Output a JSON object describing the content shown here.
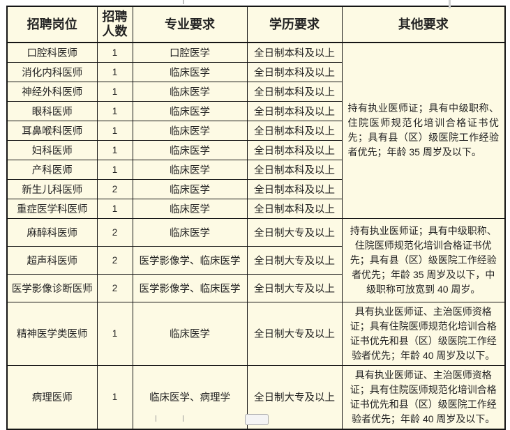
{
  "table": {
    "headers": [
      "招聘岗位",
      "招聘人数",
      "专业要求",
      "学历要求",
      "其他要求"
    ],
    "rows": [
      {
        "position": "口腔科医师",
        "count": "1",
        "major": "口腔医学",
        "education": "全日制本科及以上"
      },
      {
        "position": "消化内科医师",
        "count": "1",
        "major": "临床医学",
        "education": "全日制本科及以上"
      },
      {
        "position": "神经外科医师",
        "count": "1",
        "major": "临床医学",
        "education": "全日制本科及以上"
      },
      {
        "position": "眼科医师",
        "count": "1",
        "major": "临床医学",
        "education": "全日制本科及以上"
      },
      {
        "position": "耳鼻喉科医师",
        "count": "1",
        "major": "临床医学",
        "education": "全日制本科及以上"
      },
      {
        "position": "妇科医师",
        "count": "1",
        "major": "临床医学",
        "education": "全日制本科及以上"
      },
      {
        "position": "产科医师",
        "count": "1",
        "major": "临床医学",
        "education": "全日制本科及以上"
      },
      {
        "position": "新生儿科医师",
        "count": "2",
        "major": "临床医学",
        "education": "全日制本科及以上"
      },
      {
        "position": "重症医学科医师",
        "count": "1",
        "major": "临床医学",
        "education": "全日制本科及以上"
      },
      {
        "position": "麻醉科医师",
        "count": "2",
        "major": "临床医学",
        "education": "全日制大专及以上"
      },
      {
        "position": "超声科医师",
        "count": "2",
        "major": "医学影像学、临床医学",
        "education": "全日制大专及以上"
      },
      {
        "position": "医学影像诊断医师",
        "count": "2",
        "major": "医学影像学、临床医学",
        "education": "全日制大专及以上"
      },
      {
        "position": "精神医学类医师",
        "count": "1",
        "major": "临床医学",
        "education": "全日制大专及以上"
      },
      {
        "position": "病理医师",
        "count": "1",
        "major": "临床医学、病理学",
        "education": "全日制大专及以上"
      }
    ],
    "other_requirements": [
      {
        "row_start": 0,
        "row_span": 9,
        "align": "justify",
        "text": "持有执业医师证；具有中级职称、住院医师规范化培训合格证书优先；具有县（区）级医院工作经验者优先；年龄 35 周岁及以下。"
      },
      {
        "row_start": 9,
        "row_span": 3,
        "align": "center",
        "text": "持有执业医师证；具有中级职称、住院医师规范化培训合格证书优先；具有县（区）级医院工作经验者优先；年龄 35 周岁及以下，中级职称可放宽到 40 周岁。"
      },
      {
        "row_start": 12,
        "row_span": 1,
        "align": "center",
        "text": "具有执业医师证、主治医师资格证；具有住院医师规范化培训合格证书优先和县（区）级医院工作经验者优先；年龄 40 周岁及以下。"
      },
      {
        "row_start": 13,
        "row_span": 1,
        "align": "center",
        "text": "具有执业医师证、主治医师资格证；具有住院医师规范化培训合格证书优先和县（区）级医院工作经验者优先；年龄 40 周岁及以下。"
      }
    ]
  },
  "colors": {
    "cell_background": "#fdfae4",
    "border": "#151515",
    "text": "#232323",
    "page_background": "#ffffff"
  }
}
